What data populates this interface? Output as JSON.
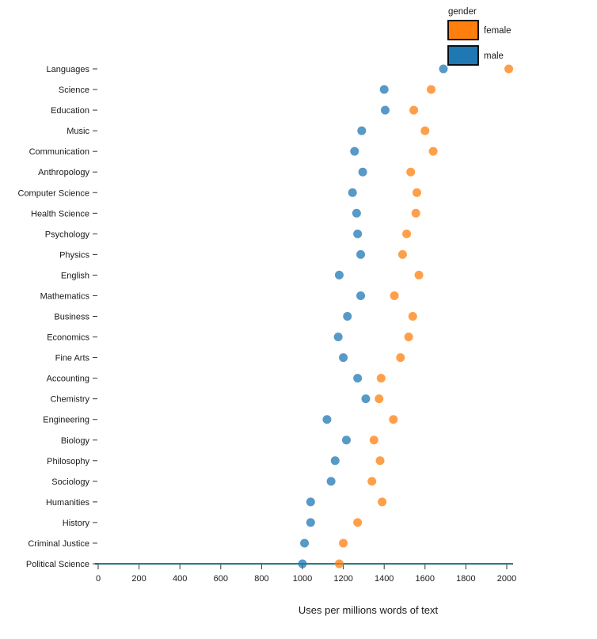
{
  "chart_data": {
    "type": "scatter",
    "orientation": "horizontal",
    "title": "",
    "xlabel": "Uses per millions words of text",
    "ylabel": "",
    "xlim": [
      0,
      2000
    ],
    "xticks": [
      0,
      200,
      400,
      600,
      800,
      1000,
      1200,
      1400,
      1600,
      1800,
      2000
    ],
    "grid": false,
    "legend": {
      "title": "gender",
      "position": "top-right",
      "entries": [
        {
          "label": "female",
          "color": "#ff7f0e"
        },
        {
          "label": "male",
          "color": "#1f77b4"
        }
      ]
    },
    "categories": [
      "Languages",
      "Science",
      "Education",
      "Music",
      "Communication",
      "Anthropology",
      "Computer Science",
      "Health Science",
      "Psychology",
      "Physics",
      "English",
      "Mathematics",
      "Business",
      "Economics",
      "Fine Arts",
      "Accounting",
      "Chemistry",
      "Engineering",
      "Biology",
      "Philosophy",
      "Sociology",
      "Humanities",
      "History",
      "Criminal Justice",
      "Political Science"
    ],
    "series": [
      {
        "name": "female",
        "color": "#ff7f0e",
        "values": [
          2010,
          1630,
          1545,
          1600,
          1640,
          1530,
          1560,
          1555,
          1510,
          1490,
          1570,
          1450,
          1540,
          1520,
          1480,
          1385,
          1375,
          1445,
          1350,
          1380,
          1340,
          1390,
          1270,
          1200,
          1180
        ]
      },
      {
        "name": "male",
        "color": "#1f77b4",
        "values": [
          1690,
          1400,
          1405,
          1290,
          1255,
          1295,
          1245,
          1265,
          1270,
          1285,
          1180,
          1285,
          1220,
          1175,
          1200,
          1270,
          1310,
          1120,
          1215,
          1160,
          1140,
          1040,
          1040,
          1010,
          1000
        ]
      }
    ],
    "style": {
      "dot_opacity": 0.75,
      "axis_line_color": "#2a7b7b",
      "tick_color": "#333333",
      "text_color": "#1a1a1a",
      "legend_swatch_border": "#000000"
    }
  }
}
